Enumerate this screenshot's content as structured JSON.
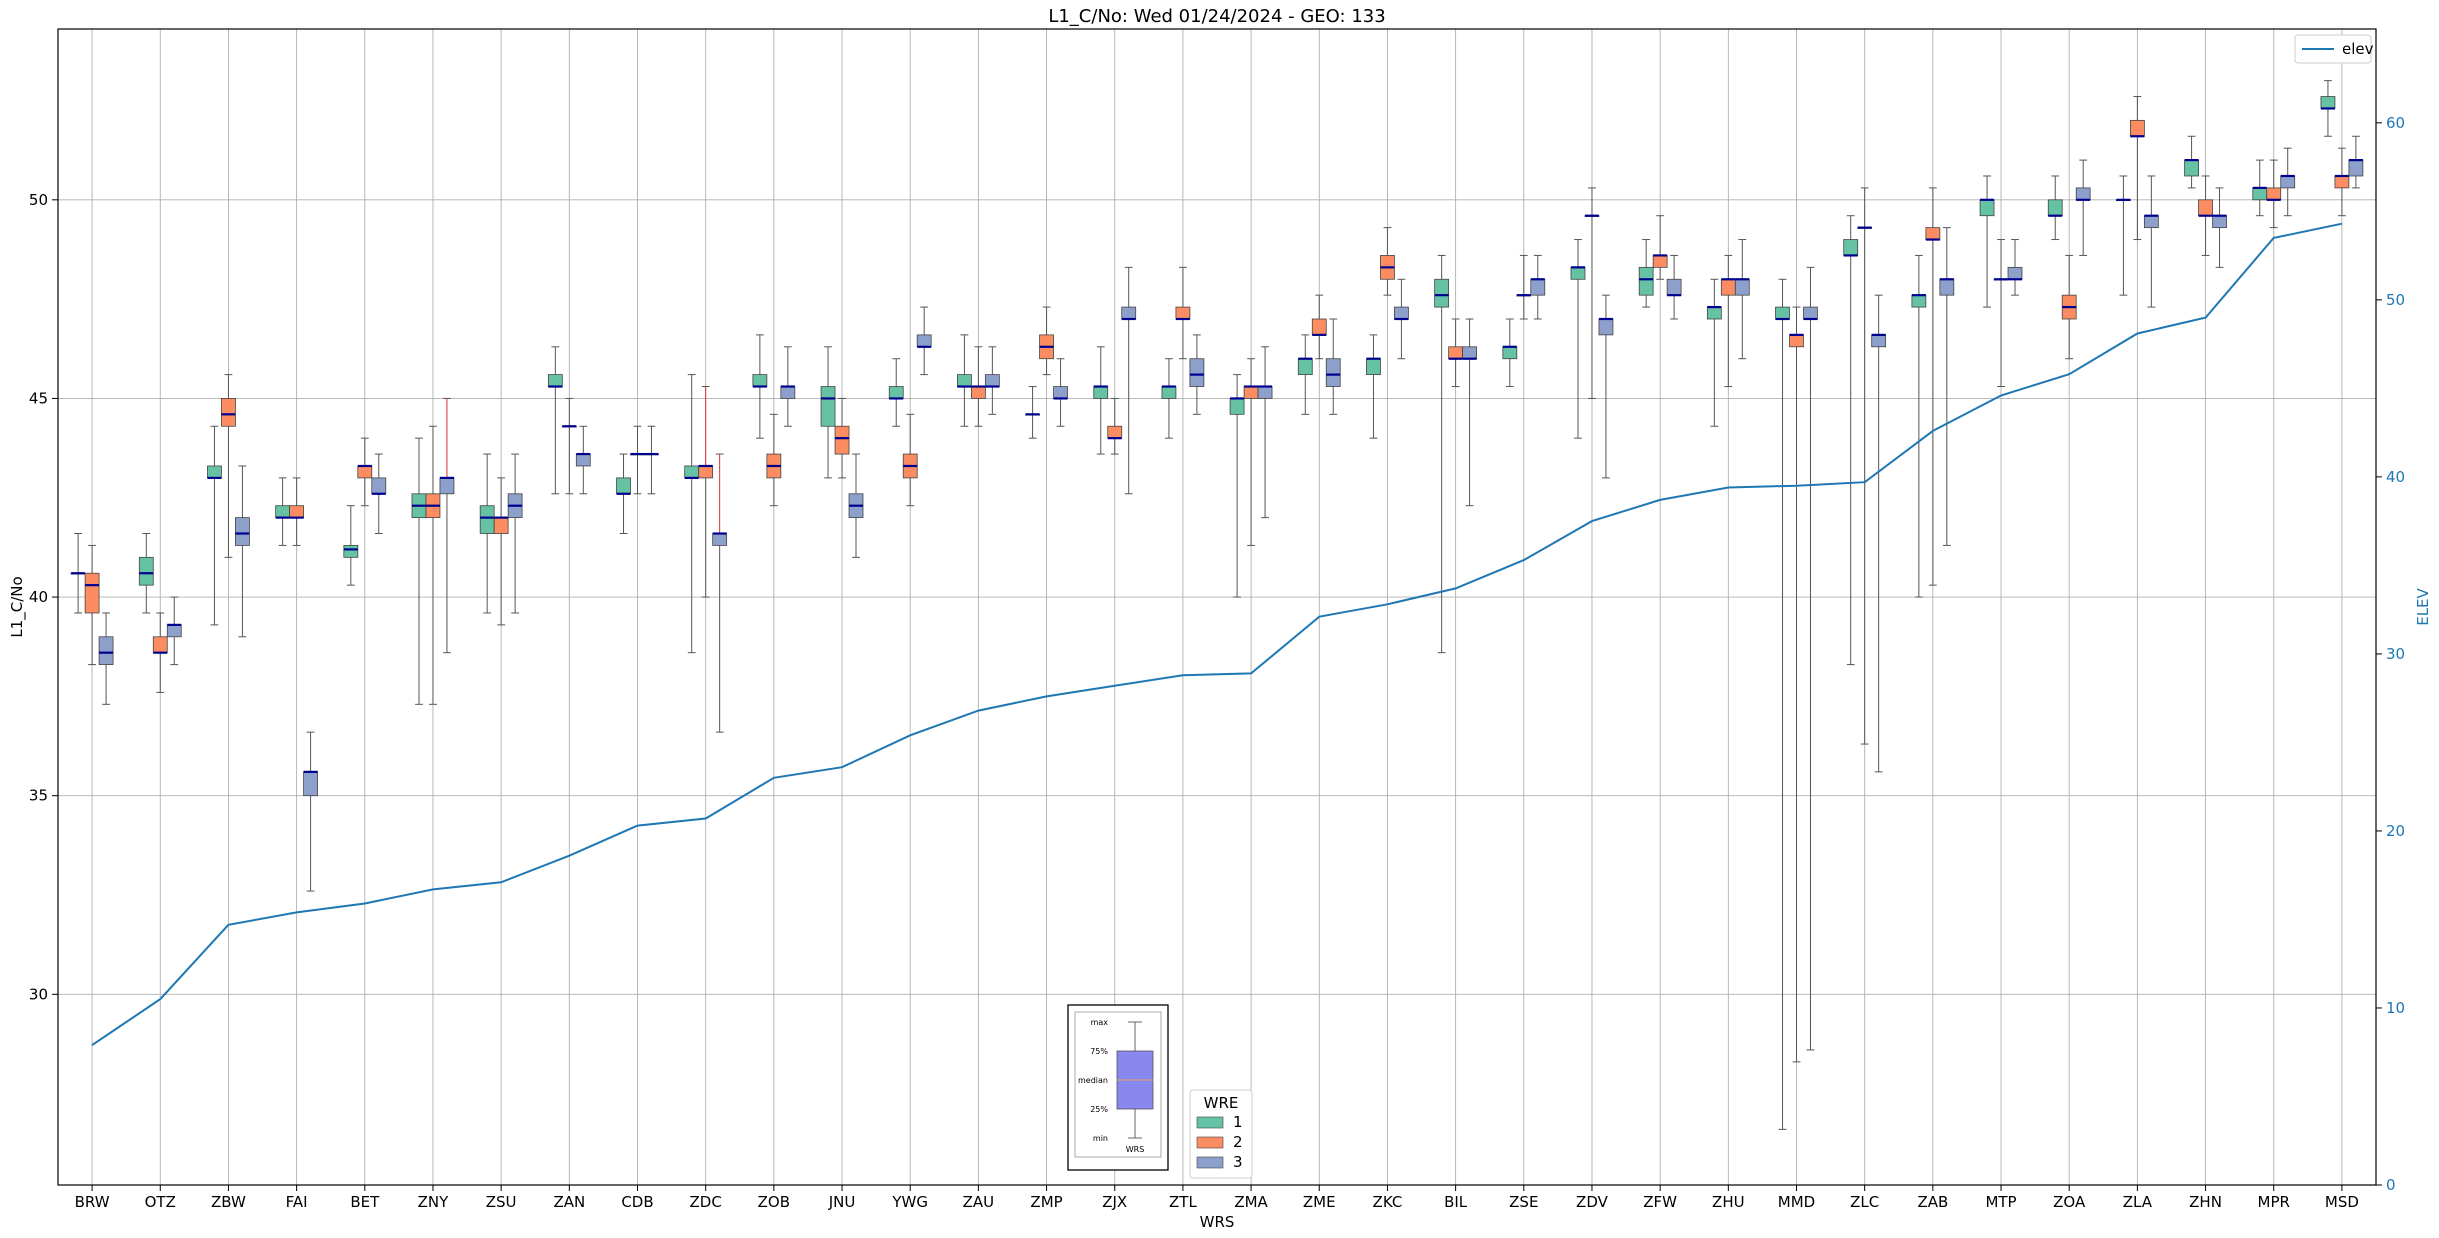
{
  "chart_data": {
    "type": "box",
    "title": "L1_C/No: Wed 01/24/2024 - GEO: 133",
    "xlabel": "WRS",
    "ylabel": "L1_C/No",
    "y2label": "ELEV",
    "ylim": [
      25.2,
      54.3
    ],
    "y2lim": [
      0,
      65.3
    ],
    "yticks": [
      30,
      35,
      40,
      45,
      50
    ],
    "y2ticks": [
      0,
      10,
      20,
      30,
      40,
      50,
      60
    ],
    "grid": true,
    "categories": [
      "BRW",
      "OTZ",
      "ZBW",
      "FAI",
      "BET",
      "ZNY",
      "ZSU",
      "ZAN",
      "CDB",
      "ZDC",
      "ZOB",
      "JNU",
      "YWG",
      "ZAU",
      "ZMP",
      "ZJX",
      "ZTL",
      "ZMA",
      "ZME",
      "ZKC",
      "BIL",
      "ZSE",
      "ZDV",
      "ZFW",
      "ZHU",
      "MMD",
      "ZLC",
      "ZAB",
      "MTP",
      "ZOA",
      "ZLA",
      "ZHN",
      "MPR",
      "MSD"
    ],
    "box_series": [
      {
        "name": "1",
        "color": "#66c2a5",
        "boxes": [
          {
            "min": 39.6,
            "q1": 40.6,
            "median": 40.6,
            "q3": 40.6,
            "max": 41.6
          },
          {
            "min": 39.6,
            "q1": 40.3,
            "median": 40.6,
            "q3": 41.0,
            "max": 41.6
          },
          {
            "min": 39.3,
            "q1": 43.0,
            "median": 43.0,
            "q3": 43.3,
            "max": 44.3
          },
          {
            "min": 41.3,
            "q1": 42.0,
            "median": 42.0,
            "q3": 42.3,
            "max": 43.0
          },
          {
            "min": 40.3,
            "q1": 41.0,
            "median": 41.2,
            "q3": 41.3,
            "max": 42.3
          },
          {
            "min": 37.3,
            "q1": 42.0,
            "median": 42.3,
            "q3": 42.6,
            "max": 44.0
          },
          {
            "min": 39.6,
            "q1": 41.6,
            "median": 42.0,
            "q3": 42.3,
            "max": 43.6
          },
          {
            "min": 42.6,
            "q1": 45.3,
            "median": 45.3,
            "q3": 45.6,
            "max": 46.3
          },
          {
            "min": 41.6,
            "q1": 42.6,
            "median": 42.6,
            "q3": 43.0,
            "max": 43.6
          },
          {
            "min": 38.6,
            "q1": 43.0,
            "median": 43.0,
            "q3": 43.3,
            "max": 45.6
          },
          {
            "min": 44.0,
            "q1": 45.3,
            "median": 45.3,
            "q3": 45.6,
            "max": 46.6
          },
          {
            "min": 43.0,
            "q1": 44.3,
            "median": 45.0,
            "q3": 45.3,
            "max": 46.3
          },
          {
            "min": 44.3,
            "q1": 45.0,
            "median": 45.0,
            "q3": 45.3,
            "max": 46.0
          },
          {
            "min": 44.3,
            "q1": 45.3,
            "median": 45.3,
            "q3": 45.6,
            "max": 46.6
          },
          {
            "min": 44.0,
            "q1": 44.6,
            "median": 44.6,
            "q3": 44.6,
            "max": 45.3
          },
          {
            "min": 43.6,
            "q1": 45.0,
            "median": 45.3,
            "q3": 45.3,
            "max": 46.3
          },
          {
            "min": 44.0,
            "q1": 45.0,
            "median": 45.3,
            "q3": 45.3,
            "max": 46.0
          },
          {
            "min": 40.0,
            "q1": 44.6,
            "median": 45.0,
            "q3": 45.0,
            "max": 45.6
          },
          {
            "min": 44.6,
            "q1": 45.6,
            "median": 46.0,
            "q3": 46.0,
            "max": 46.6
          },
          {
            "min": 44.0,
            "q1": 45.6,
            "median": 46.0,
            "q3": 46.0,
            "max": 46.6
          },
          {
            "min": 38.6,
            "q1": 47.3,
            "median": 47.6,
            "q3": 48.0,
            "max": 48.6
          },
          {
            "min": 45.3,
            "q1": 46.0,
            "median": 46.3,
            "q3": 46.3,
            "max": 47.0
          },
          {
            "min": 44.0,
            "q1": 48.0,
            "median": 48.3,
            "q3": 48.3,
            "max": 49.0
          },
          {
            "min": 47.3,
            "q1": 47.6,
            "median": 48.0,
            "q3": 48.3,
            "max": 49.0
          },
          {
            "min": 44.3,
            "q1": 47.0,
            "median": 47.3,
            "q3": 47.3,
            "max": 48.0
          },
          {
            "min": 26.6,
            "q1": 47.0,
            "median": 47.0,
            "q3": 47.3,
            "max": 48.0
          },
          {
            "min": 38.3,
            "q1": 48.6,
            "median": 48.6,
            "q3": 49.0,
            "max": 49.6
          },
          {
            "min": 40.0,
            "q1": 47.3,
            "median": 47.6,
            "q3": 47.6,
            "max": 48.6
          },
          {
            "min": 47.3,
            "q1": 49.6,
            "median": 50.0,
            "q3": 50.0,
            "max": 50.6
          },
          {
            "min": 49.0,
            "q1": 49.6,
            "median": 49.6,
            "q3": 50.0,
            "max": 50.6
          },
          {
            "min": 47.6,
            "q1": 50.0,
            "median": 50.0,
            "q3": 50.0,
            "max": 50.6
          },
          {
            "min": 50.3,
            "q1": 50.6,
            "median": 51.0,
            "q3": 51.0,
            "max": 51.6
          },
          {
            "min": 49.6,
            "q1": 50.0,
            "median": 50.3,
            "q3": 50.3,
            "max": 51.0
          },
          {
            "min": 51.6,
            "q1": 52.3,
            "median": 52.3,
            "q3": 52.6,
            "max": 53.0
          }
        ]
      },
      {
        "name": "2",
        "color": "#fc8d62",
        "boxes": [
          {
            "min": 38.3,
            "q1": 39.6,
            "median": 40.3,
            "q3": 40.6,
            "max": 41.3
          },
          {
            "min": 37.6,
            "q1": 38.6,
            "median": 38.6,
            "q3": 39.0,
            "max": 39.6
          },
          {
            "min": 41.0,
            "q1": 44.3,
            "median": 44.6,
            "q3": 45.0,
            "max": 45.6
          },
          {
            "min": 41.3,
            "q1": 42.0,
            "median": 42.0,
            "q3": 42.3,
            "max": 43.0
          },
          {
            "min": 42.3,
            "q1": 43.0,
            "median": 43.3,
            "q3": 43.3,
            "max": 44.0
          },
          {
            "min": 37.3,
            "q1": 42.0,
            "median": 42.3,
            "q3": 42.6,
            "max": 44.3
          },
          {
            "min": 39.3,
            "q1": 41.6,
            "median": 42.0,
            "q3": 42.0,
            "max": 43.0
          },
          {
            "min": 42.6,
            "q1": 44.3,
            "median": 44.3,
            "q3": 44.3,
            "max": 45.0
          },
          {
            "min": 42.6,
            "q1": 43.6,
            "median": 43.6,
            "q3": 43.6,
            "max": 44.3
          },
          {
            "min": 40.0,
            "q1": 43.0,
            "median": 43.3,
            "q3": 43.3,
            "max": 45.3
          },
          {
            "min": 42.3,
            "q1": 43.0,
            "median": 43.3,
            "q3": 43.6,
            "max": 44.6
          },
          {
            "min": 43.0,
            "q1": 43.6,
            "median": 44.0,
            "q3": 44.3,
            "max": 45.0
          },
          {
            "min": 42.3,
            "q1": 43.0,
            "median": 43.3,
            "q3": 43.6,
            "max": 44.6
          },
          {
            "min": 44.3,
            "q1": 45.0,
            "median": 45.3,
            "q3": 45.3,
            "max": 46.3
          },
          {
            "min": 45.6,
            "q1": 46.0,
            "median": 46.3,
            "q3": 46.6,
            "max": 47.3
          },
          {
            "min": 43.6,
            "q1": 44.0,
            "median": 44.0,
            "q3": 44.3,
            "max": 45.0
          },
          {
            "min": 46.0,
            "q1": 47.0,
            "median": 47.0,
            "q3": 47.3,
            "max": 48.3
          },
          {
            "min": 41.3,
            "q1": 45.0,
            "median": 45.3,
            "q3": 45.3,
            "max": 46.0
          },
          {
            "min": 46.0,
            "q1": 46.6,
            "median": 46.6,
            "q3": 47.0,
            "max": 47.6
          },
          {
            "min": 47.6,
            "q1": 48.0,
            "median": 48.3,
            "q3": 48.6,
            "max": 49.3
          },
          {
            "min": 45.3,
            "q1": 46.0,
            "median": 46.0,
            "q3": 46.3,
            "max": 47.0
          },
          {
            "min": 47.0,
            "q1": 47.6,
            "median": 47.6,
            "q3": 47.6,
            "max": 48.6
          },
          {
            "min": 45.0,
            "q1": 49.6,
            "median": 49.6,
            "q3": 49.6,
            "max": 50.3
          },
          {
            "min": 48.0,
            "q1": 48.3,
            "median": 48.6,
            "q3": 48.6,
            "max": 49.6
          },
          {
            "min": 45.3,
            "q1": 47.6,
            "median": 48.0,
            "q3": 48.0,
            "max": 48.6
          },
          {
            "min": 28.3,
            "q1": 46.3,
            "median": 46.6,
            "q3": 46.6,
            "max": 47.3
          },
          {
            "min": 36.3,
            "q1": 49.3,
            "median": 49.3,
            "q3": 49.3,
            "max": 50.3
          },
          {
            "min": 40.3,
            "q1": 49.0,
            "median": 49.0,
            "q3": 49.3,
            "max": 50.3
          },
          {
            "min": 45.3,
            "q1": 48.0,
            "median": 48.0,
            "q3": 48.0,
            "max": 49.0
          },
          {
            "min": 46.0,
            "q1": 47.0,
            "median": 47.3,
            "q3": 47.6,
            "max": 48.6
          },
          {
            "min": 49.0,
            "q1": 51.6,
            "median": 51.6,
            "q3": 52.0,
            "max": 52.6
          },
          {
            "min": 48.6,
            "q1": 49.6,
            "median": 49.6,
            "q3": 50.0,
            "max": 50.6
          },
          {
            "min": 49.3,
            "q1": 50.0,
            "median": 50.0,
            "q3": 50.3,
            "max": 51.0
          },
          {
            "min": 49.6,
            "q1": 50.3,
            "median": 50.6,
            "q3": 50.6,
            "max": 51.3
          }
        ]
      },
      {
        "name": "3",
        "color": "#8da0cb",
        "boxes": [
          {
            "min": 37.3,
            "q1": 38.3,
            "median": 38.6,
            "q3": 39.0,
            "max": 39.6
          },
          {
            "min": 38.3,
            "q1": 39.0,
            "median": 39.3,
            "q3": 39.3,
            "max": 40.0
          },
          {
            "min": 39.0,
            "q1": 41.3,
            "median": 41.6,
            "q3": 42.0,
            "max": 43.3
          },
          {
            "min": 32.6,
            "q1": 35.0,
            "median": 35.6,
            "q3": 35.6,
            "max": 36.6
          },
          {
            "min": 41.6,
            "q1": 42.6,
            "median": 42.6,
            "q3": 43.0,
            "max": 43.6
          },
          {
            "min": 38.6,
            "q1": 42.6,
            "median": 43.0,
            "q3": 43.0,
            "max": 45.0
          },
          {
            "min": 39.6,
            "q1": 42.0,
            "median": 42.3,
            "q3": 42.6,
            "max": 43.6
          },
          {
            "min": 42.6,
            "q1": 43.3,
            "median": 43.6,
            "q3": 43.6,
            "max": 44.3
          },
          {
            "min": 42.6,
            "q1": 43.6,
            "median": 43.6,
            "q3": 43.6,
            "max": 44.3
          },
          {
            "min": 36.6,
            "q1": 41.3,
            "median": 41.6,
            "q3": 41.6,
            "max": 43.6
          },
          {
            "min": 44.3,
            "q1": 45.0,
            "median": 45.3,
            "q3": 45.3,
            "max": 46.3
          },
          {
            "min": 41.0,
            "q1": 42.0,
            "median": 42.3,
            "q3": 42.6,
            "max": 43.6
          },
          {
            "min": 45.6,
            "q1": 46.3,
            "median": 46.3,
            "q3": 46.6,
            "max": 47.3
          },
          {
            "min": 44.6,
            "q1": 45.3,
            "median": 45.3,
            "q3": 45.6,
            "max": 46.3
          },
          {
            "min": 44.3,
            "q1": 45.0,
            "median": 45.0,
            "q3": 45.3,
            "max": 46.0
          },
          {
            "min": 42.6,
            "q1": 47.0,
            "median": 47.0,
            "q3": 47.3,
            "max": 48.3
          },
          {
            "min": 44.6,
            "q1": 45.3,
            "median": 45.6,
            "q3": 46.0,
            "max": 46.6
          },
          {
            "min": 42.0,
            "q1": 45.0,
            "median": 45.3,
            "q3": 45.3,
            "max": 46.3
          },
          {
            "min": 44.6,
            "q1": 45.3,
            "median": 45.6,
            "q3": 46.0,
            "max": 47.0
          },
          {
            "min": 46.0,
            "q1": 47.0,
            "median": 47.0,
            "q3": 47.3,
            "max": 48.0
          },
          {
            "min": 42.3,
            "q1": 46.0,
            "median": 46.0,
            "q3": 46.3,
            "max": 47.0
          },
          {
            "min": 47.0,
            "q1": 47.6,
            "median": 48.0,
            "q3": 48.0,
            "max": 48.6
          },
          {
            "min": 43.0,
            "q1": 46.6,
            "median": 47.0,
            "q3": 47.0,
            "max": 47.6
          },
          {
            "min": 47.0,
            "q1": 47.6,
            "median": 47.6,
            "q3": 48.0,
            "max": 48.6
          },
          {
            "min": 46.0,
            "q1": 47.6,
            "median": 48.0,
            "q3": 48.0,
            "max": 49.0
          },
          {
            "min": 28.6,
            "q1": 47.0,
            "median": 47.0,
            "q3": 47.3,
            "max": 48.3
          },
          {
            "min": 35.6,
            "q1": 46.3,
            "median": 46.6,
            "q3": 46.6,
            "max": 47.6
          },
          {
            "min": 41.3,
            "q1": 47.6,
            "median": 48.0,
            "q3": 48.0,
            "max": 49.3
          },
          {
            "min": 47.6,
            "q1": 48.0,
            "median": 48.0,
            "q3": 48.3,
            "max": 49.0
          },
          {
            "min": 48.6,
            "q1": 50.0,
            "median": 50.0,
            "q3": 50.3,
            "max": 51.0
          },
          {
            "min": 47.3,
            "q1": 49.3,
            "median": 49.6,
            "q3": 49.6,
            "max": 50.6
          },
          {
            "min": 48.3,
            "q1": 49.3,
            "median": 49.6,
            "q3": 49.6,
            "max": 50.3
          },
          {
            "min": 49.6,
            "q1": 50.3,
            "median": 50.6,
            "q3": 50.6,
            "max": 51.3
          },
          {
            "min": 50.3,
            "q1": 50.6,
            "median": 51.0,
            "q3": 51.0,
            "max": 51.6
          }
        ]
      }
    ],
    "line_series": {
      "name": "elev",
      "color": "#1f77b4",
      "axis": "right",
      "values": [
        7.9,
        10.5,
        14.7,
        15.4,
        15.9,
        16.7,
        17.1,
        18.6,
        20.3,
        20.7,
        23.0,
        23.6,
        25.4,
        26.8,
        27.6,
        28.2,
        28.8,
        28.9,
        32.1,
        32.8,
        33.7,
        35.3,
        37.5,
        38.7,
        39.4,
        39.5,
        39.7,
        42.6,
        44.6,
        45.8,
        48.1,
        49.0,
        53.5,
        54.3
      ]
    },
    "box_legend": {
      "title": "WRE",
      "placement": "lower-center",
      "entries": [
        "1",
        "2",
        "3"
      ]
    },
    "line_legend": {
      "placement": "top-right",
      "entries": [
        "elev"
      ]
    },
    "key_inset": {
      "labels": [
        "max",
        "75%",
        "median",
        "25%",
        "min"
      ],
      "caption": "WRS",
      "fill_color": "#8888ee"
    }
  }
}
